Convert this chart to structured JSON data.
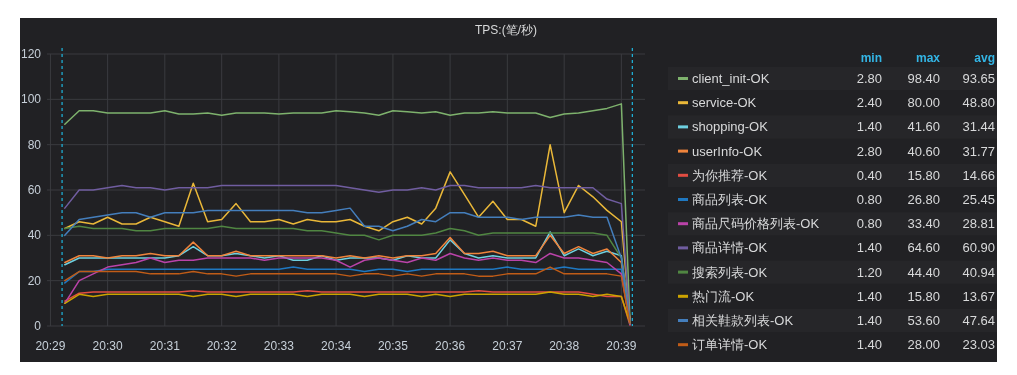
{
  "chart_data": {
    "type": "line",
    "title": "TPS:(笔/秒)",
    "x": [
      20.4875,
      20.4917,
      20.4958,
      20.5,
      20.5042,
      20.5083,
      20.5125,
      20.5167,
      20.5208,
      20.525,
      20.5292,
      20.5333,
      20.5375,
      20.5417,
      20.5458,
      20.55,
      20.5542,
      20.5583,
      20.5625,
      20.5667,
      20.5708,
      20.575,
      20.5792,
      20.5833,
      20.5875,
      20.5917,
      20.5958,
      20.6,
      20.6042,
      20.6083,
      20.6125,
      20.6167,
      20.6208,
      20.625,
      20.6292,
      20.6333,
      20.6375,
      20.6417,
      20.6458,
      20.65,
      20.6525
    ],
    "xlim": [
      20.4823,
      20.6569
    ],
    "xticks": [
      {
        "value": 20.4833,
        "label": "20:29"
      },
      {
        "value": 20.5,
        "label": "20:30"
      },
      {
        "value": 20.5167,
        "label": "20:31"
      },
      {
        "value": 20.5333,
        "label": "20:32"
      },
      {
        "value": 20.55,
        "label": "20:33"
      },
      {
        "value": 20.5667,
        "label": "20:34"
      },
      {
        "value": 20.5833,
        "label": "20:35"
      },
      {
        "value": 20.6,
        "label": "20:36"
      },
      {
        "value": 20.6167,
        "label": "20:37"
      },
      {
        "value": 20.6333,
        "label": "20:38"
      },
      {
        "value": 20.65,
        "label": "20:39"
      }
    ],
    "ylim": [
      0,
      120
    ],
    "yticks": [
      0,
      20,
      40,
      60,
      80,
      100,
      120
    ],
    "grid": true,
    "legend": "right",
    "ref_lines": [
      {
        "axis": "x",
        "value": 20.4867,
        "label": null,
        "color": "#1fb8e0",
        "line_style": "dashed"
      },
      {
        "axis": "x",
        "value": 20.6532,
        "label": null,
        "color": "#1fb8e0",
        "line_style": "dashed"
      }
    ],
    "series": [
      {
        "name": "client_init-OK",
        "color": "#7eb26d",
        "values": [
          89,
          95,
          95,
          94,
          94,
          94,
          94,
          95,
          93.5,
          93.5,
          94,
          93,
          94,
          94,
          94,
          93.5,
          94,
          94,
          94,
          95,
          94.5,
          94,
          93,
          95,
          94.5,
          94,
          94.5,
          93,
          94,
          94,
          94.5,
          94,
          94,
          94,
          92,
          93.5,
          94,
          95,
          96,
          98,
          2.8
        ]
      },
      {
        "name": "service-OK",
        "color": "#eab839",
        "values": [
          43,
          46,
          45,
          48,
          45,
          45,
          48,
          46,
          44,
          63,
          46,
          47,
          54,
          46,
          46,
          47,
          45,
          47,
          46,
          46,
          47,
          44,
          42,
          46,
          48,
          45,
          52,
          68,
          58,
          48,
          55,
          47,
          47,
          44,
          80,
          50,
          62,
          57,
          51,
          46,
          2.4
        ]
      },
      {
        "name": "shopping-OK",
        "color": "#6ed0e0",
        "values": [
          27,
          30,
          30,
          30,
          30,
          30,
          30,
          30,
          31,
          35,
          31,
          31,
          32,
          31,
          30,
          31,
          29,
          29,
          31,
          29,
          30,
          30,
          30,
          29,
          31,
          30,
          30,
          38,
          32,
          30,
          31,
          30,
          30,
          30,
          41.5,
          31,
          34,
          31,
          33,
          31,
          1.4
        ]
      },
      {
        "name": "userInfo-OK",
        "color": "#ef843c",
        "values": [
          28,
          31,
          31,
          30,
          31,
          31,
          32,
          31,
          31,
          37,
          31,
          31,
          33,
          31,
          31,
          31,
          31,
          31,
          31,
          30,
          31,
          30,
          31,
          30,
          31,
          31,
          32,
          39,
          32,
          32,
          33,
          31,
          31,
          31,
          40,
          32,
          35,
          32,
          34,
          28,
          2.8
        ]
      },
      {
        "name": "为你推荐-OK",
        "color": "#e24d42",
        "values": [
          11,
          14.5,
          15,
          15,
          15,
          15,
          15,
          15,
          15,
          15.5,
          15,
          15,
          15,
          15,
          15,
          15,
          15,
          15.5,
          15,
          15,
          15,
          15,
          15,
          15,
          15,
          15,
          15,
          15,
          15,
          15.5,
          15,
          15,
          15,
          15,
          15,
          15,
          15,
          14,
          13,
          13,
          0.4
        ]
      },
      {
        "name": "商品列表-OK",
        "color": "#1f78c1",
        "values": [
          19,
          24,
          24,
          25,
          25,
          25,
          25,
          25,
          25,
          25,
          25,
          25,
          25,
          25,
          25,
          25,
          26,
          25,
          25,
          25,
          25,
          24,
          25,
          25,
          24,
          25,
          25,
          25,
          25,
          25,
          25,
          26,
          25,
          25,
          25,
          26,
          25,
          25,
          25,
          25,
          0.8
        ]
      },
      {
        "name": "商品尺码价格列表-OK",
        "color": "#ba43a9",
        "values": [
          10,
          20,
          23,
          26,
          27,
          28,
          30,
          28,
          29,
          29,
          30,
          30,
          30,
          30,
          29,
          30,
          30,
          30,
          30,
          29,
          26,
          29,
          30,
          29,
          28,
          30,
          29,
          32,
          30,
          29,
          30,
          29,
          29,
          28,
          32,
          30,
          30,
          29,
          28,
          23,
          0.8
        ]
      },
      {
        "name": "商品详情-OK",
        "color": "#705da0",
        "values": [
          52,
          60,
          60,
          61,
          62,
          61,
          61,
          60,
          61,
          61,
          61,
          62,
          62,
          62,
          62,
          62,
          62,
          62,
          62,
          62,
          61,
          60,
          59,
          60,
          60,
          61,
          60,
          62,
          62,
          61,
          61,
          61,
          61,
          62,
          61,
          61,
          61,
          61,
          56,
          54,
          1.4
        ]
      },
      {
        "name": "搜索列表-OK",
        "color": "#508642",
        "values": [
          43,
          44,
          43,
          43,
          43,
          42,
          42,
          43,
          43,
          43,
          43,
          44,
          43,
          43,
          43,
          43,
          43,
          42,
          42,
          41,
          40,
          40,
          38,
          40,
          40,
          40,
          41,
          43,
          42,
          40,
          41,
          41,
          41,
          41,
          41,
          41,
          41,
          41,
          40,
          30,
          1.2
        ]
      },
      {
        "name": "热门流-OK",
        "color": "#cca300",
        "values": [
          10,
          14,
          13,
          14,
          14,
          14,
          14,
          14,
          14,
          13,
          14,
          14,
          13,
          14,
          14,
          14,
          14,
          13,
          14,
          14,
          14,
          13,
          14,
          14,
          14,
          13,
          14,
          13,
          14,
          14,
          14,
          14,
          14,
          14,
          15,
          14,
          14,
          13,
          14,
          13,
          1.4
        ]
      },
      {
        "name": "相关鞋款列表-OK",
        "color": "#447ebc",
        "values": [
          40,
          47,
          48,
          49,
          50,
          50,
          48,
          50,
          50,
          50,
          51,
          51,
          51,
          51,
          51,
          51,
          51,
          50,
          50,
          51,
          52,
          44,
          44,
          42,
          44,
          47,
          46,
          50,
          50,
          48,
          48,
          48,
          47,
          48,
          48,
          48,
          49,
          48,
          48,
          30,
          1.4
        ]
      },
      {
        "name": "订单详情-OK",
        "color": "#c15c17",
        "values": [
          20,
          24,
          24,
          24,
          24,
          24,
          23,
          23,
          23,
          24,
          23,
          23,
          22,
          23,
          23,
          23,
          23,
          23,
          23,
          23,
          22,
          23,
          23,
          22,
          23,
          22,
          23,
          23,
          23,
          22,
          22,
          23,
          23,
          23,
          26,
          23,
          23,
          23,
          23,
          22,
          1.4
        ]
      }
    ],
    "annotations": [
      "min",
      "max",
      "avg",
      "2.80",
      "98.40",
      "93.65",
      "2.40",
      "80.00",
      "48.80",
      "1.40",
      "41.60",
      "31.44",
      "2.80",
      "40.60",
      "31.77",
      "0.40",
      "15.80",
      "14.66",
      "0.80",
      "26.80",
      "25.45",
      "0.80",
      "33.40",
      "28.81",
      "1.40",
      "64.60",
      "60.90",
      "1.20",
      "44.40",
      "40.94",
      "1.40",
      "15.80",
      "13.67",
      "1.40",
      "53.60",
      "47.64",
      "1.40",
      "28.00",
      "23.03"
    ]
  }
}
